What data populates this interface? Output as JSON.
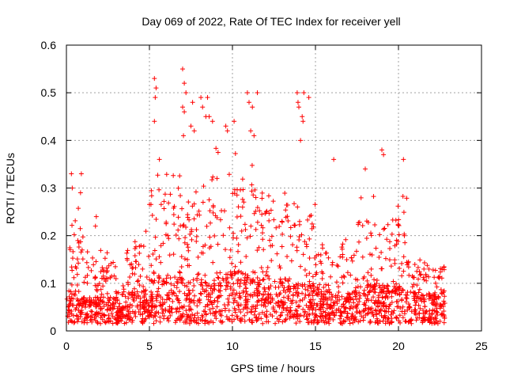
{
  "chart_data": {
    "type": "scatter",
    "title": "Day 069 of 2022, Rate Of TEC Index for receiver yell",
    "xlabel": "GPS time / hours",
    "ylabel": "ROTI / TECUs",
    "xlim": [
      0,
      25
    ],
    "ylim": [
      0,
      0.6
    ],
    "xticks": [
      "0",
      "5",
      "10",
      "15",
      "20",
      "25"
    ],
    "yticks": [
      "0",
      "0.1",
      "0.2",
      "0.3",
      "0.4",
      "0.5",
      "0.6"
    ],
    "grid": true,
    "marker": "+",
    "series_color": "#ff0000",
    "x_range_observed": [
      0,
      22.8
    ],
    "segments": [
      {
        "x0": 0.0,
        "x1": 1.0,
        "base": 0.05,
        "upper": 0.2
      },
      {
        "x0": 1.0,
        "x1": 3.0,
        "base": 0.04,
        "upper": 0.13
      },
      {
        "x0": 3.0,
        "x1": 3.6,
        "base": 0.03,
        "upper": 0.08
      },
      {
        "x0": 3.6,
        "x1": 5.0,
        "base": 0.05,
        "upper": 0.17
      },
      {
        "x0": 5.0,
        "x1": 7.0,
        "base": 0.07,
        "upper": 0.27
      },
      {
        "x0": 7.0,
        "x1": 9.0,
        "base": 0.07,
        "upper": 0.25
      },
      {
        "x0": 9.0,
        "x1": 11.5,
        "base": 0.08,
        "upper": 0.3
      },
      {
        "x0": 11.5,
        "x1": 13.5,
        "base": 0.07,
        "upper": 0.24
      },
      {
        "x0": 13.5,
        "x1": 15.0,
        "base": 0.06,
        "upper": 0.22
      },
      {
        "x0": 15.0,
        "x1": 17.5,
        "base": 0.05,
        "upper": 0.15
      },
      {
        "x0": 17.5,
        "x1": 20.5,
        "base": 0.06,
        "upper": 0.22
      },
      {
        "x0": 20.5,
        "x1": 22.8,
        "base": 0.05,
        "upper": 0.12
      }
    ],
    "outliers": [
      [
        0.3,
        0.33
      ],
      [
        0.35,
        0.3
      ],
      [
        0.9,
        0.33
      ],
      [
        0.85,
        0.29
      ],
      [
        1.8,
        0.24
      ],
      [
        1.75,
        0.22
      ],
      [
        5.3,
        0.53
      ],
      [
        5.4,
        0.51
      ],
      [
        5.35,
        0.49
      ],
      [
        5.3,
        0.44
      ],
      [
        5.6,
        0.36
      ],
      [
        7.0,
        0.55
      ],
      [
        7.1,
        0.52
      ],
      [
        7.2,
        0.5
      ],
      [
        7.0,
        0.47
      ],
      [
        7.1,
        0.46
      ],
      [
        7.05,
        0.41
      ],
      [
        7.6,
        0.48
      ],
      [
        7.5,
        0.43
      ],
      [
        7.7,
        0.42
      ],
      [
        8.1,
        0.49
      ],
      [
        8.2,
        0.47
      ],
      [
        8.5,
        0.49
      ],
      [
        8.4,
        0.45
      ],
      [
        8.6,
        0.45
      ],
      [
        8.8,
        0.44
      ],
      [
        9.6,
        0.43
      ],
      [
        9.7,
        0.42
      ],
      [
        10.1,
        0.44
      ],
      [
        10.9,
        0.5
      ],
      [
        11.0,
        0.48
      ],
      [
        11.2,
        0.47
      ],
      [
        11.1,
        0.42
      ],
      [
        11.3,
        0.41
      ],
      [
        11.5,
        0.5
      ],
      [
        13.9,
        0.5
      ],
      [
        13.95,
        0.48
      ],
      [
        14.0,
        0.47
      ],
      [
        14.3,
        0.5
      ],
      [
        14.2,
        0.45
      ],
      [
        14.25,
        0.44
      ],
      [
        14.1,
        0.4
      ],
      [
        14.6,
        0.49
      ],
      [
        16.1,
        0.36
      ],
      [
        18.0,
        0.34
      ],
      [
        19.0,
        0.38
      ],
      [
        19.1,
        0.37
      ],
      [
        20.3,
        0.36
      ]
    ]
  }
}
